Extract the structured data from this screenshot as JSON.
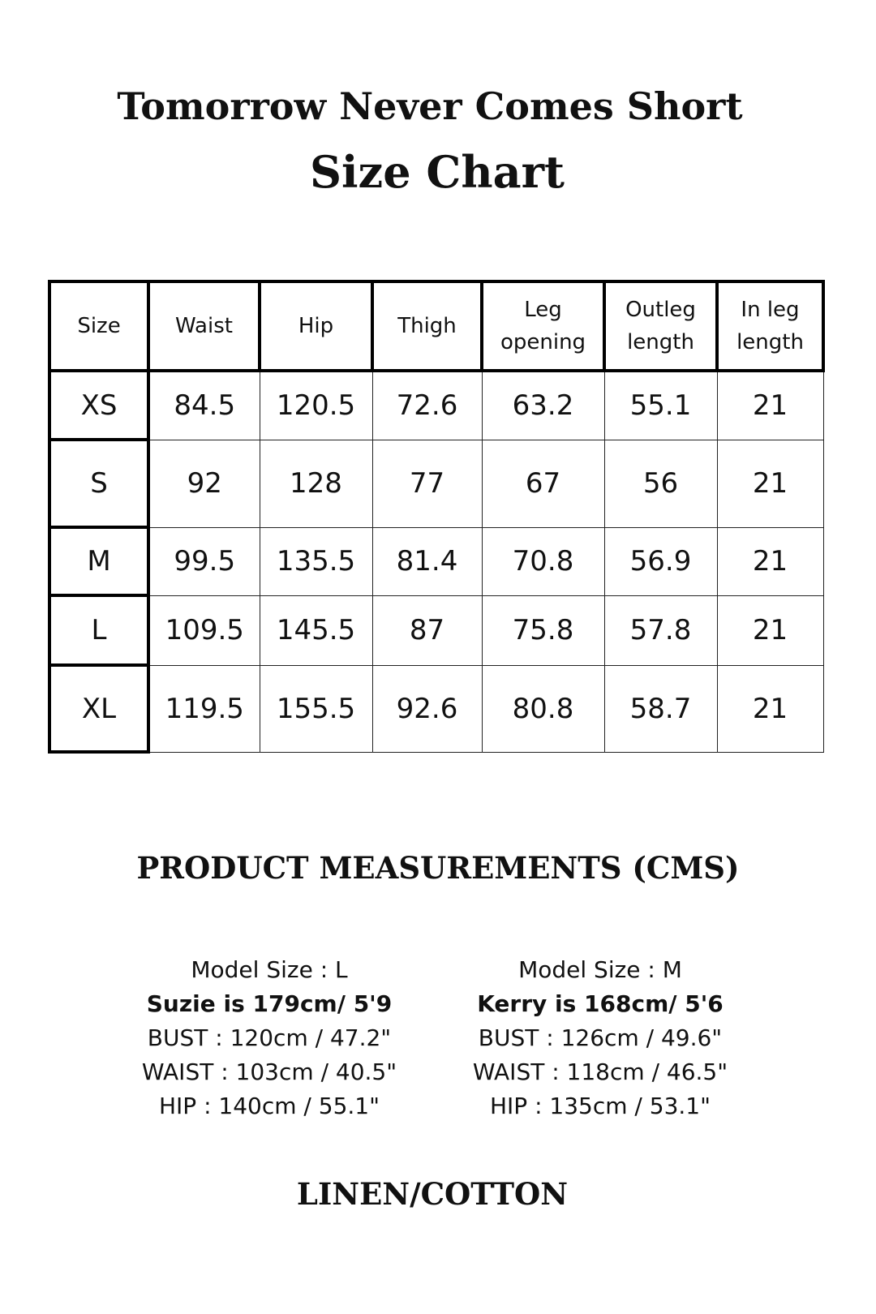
{
  "title": "Tomorrow Never Comes Short",
  "subtitle": "Size Chart",
  "table": {
    "headers": [
      [
        "Size"
      ],
      [
        "Waist"
      ],
      [
        "Hip"
      ],
      [
        "Thigh"
      ],
      [
        "Leg",
        "opening"
      ],
      [
        "Outleg",
        "length"
      ],
      [
        "In leg",
        "length"
      ]
    ],
    "rows": [
      [
        "XS",
        "84.5",
        "120.5",
        "72.6",
        "63.2",
        "55.1",
        "21"
      ],
      [
        "S",
        "92",
        "128",
        "77",
        "67",
        "56",
        "21"
      ],
      [
        "M",
        "99.5",
        "135.5",
        "81.4",
        "70.8",
        "56.9",
        "21"
      ],
      [
        "L",
        "109.5",
        "145.5",
        "87",
        "75.8",
        "57.8",
        "21"
      ],
      [
        "XL",
        "119.5",
        "155.5",
        "92.6",
        "80.8",
        "58.7",
        "21"
      ]
    ]
  },
  "measurements_heading": "PRODUCT MEASUREMENTS (CMS)",
  "models": [
    {
      "size": "Model Size : L",
      "height": "Suzie is 179cm/ 5'9",
      "bust": "BUST : 120cm / 47.2\"",
      "waist": "WAIST : 103cm / 40.5\"",
      "hip": "HIP : 140cm / 55.1\""
    },
    {
      "size": "Model Size : M",
      "height": "Kerry is 168cm/ 5'6",
      "bust": "BUST : 126cm / 49.6\"",
      "waist": "WAIST : 118cm / 46.5\"",
      "hip": "HIP : 135cm / 53.1\""
    }
  ],
  "fabric": "LINEN/COTTON"
}
